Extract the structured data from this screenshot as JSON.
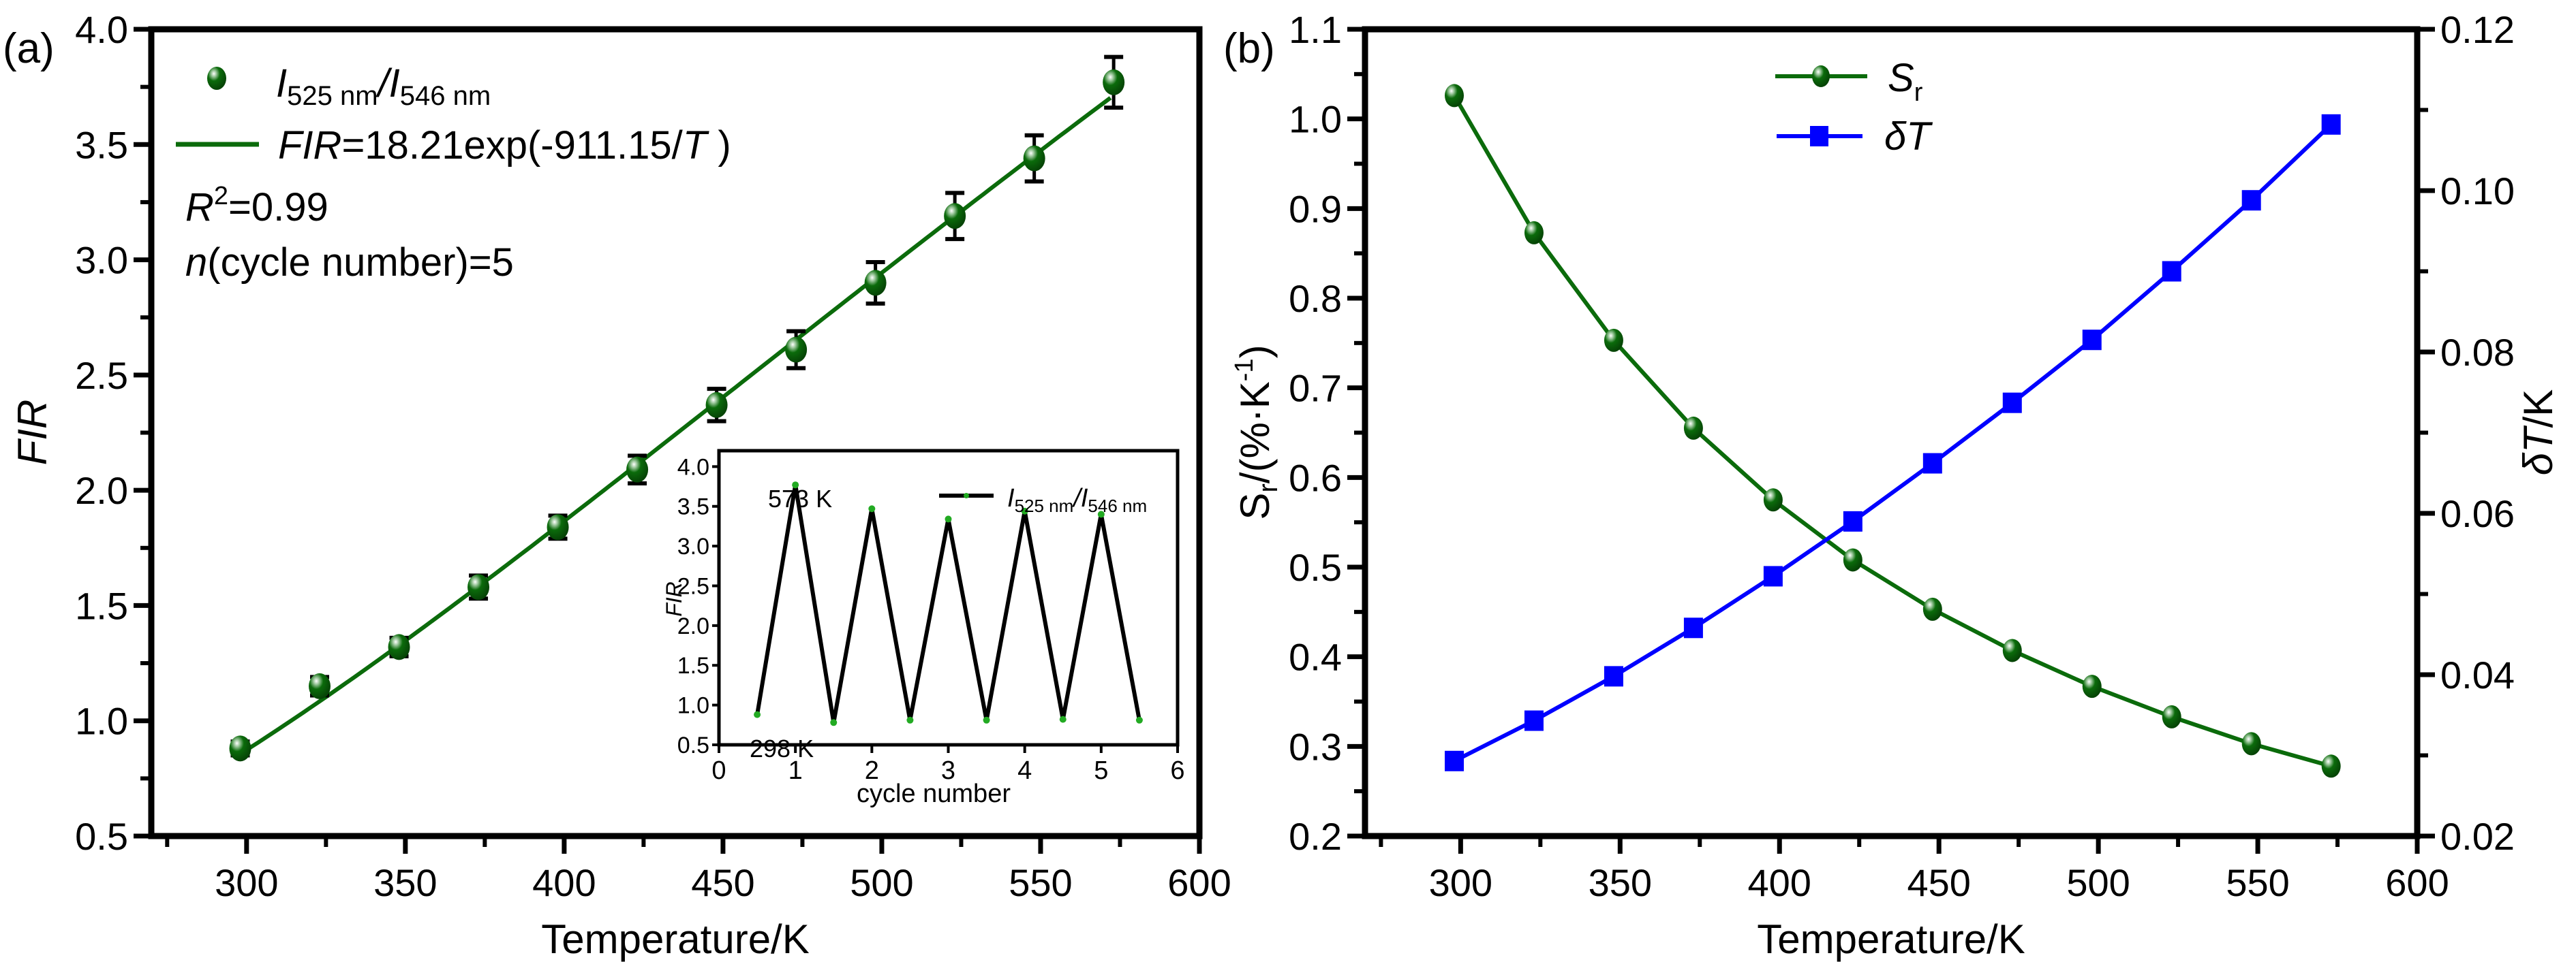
{
  "chart_data": [
    {
      "panel_label": "(a)",
      "type": "scatter",
      "title": "",
      "xlabel": "Temperature/K",
      "ylabel": "FIR",
      "xlim": [
        270,
        600
      ],
      "ylim": [
        0.5,
        4.0
      ],
      "xticks": [
        300,
        350,
        400,
        450,
        500,
        550,
        600
      ],
      "xtick_labels": [
        "300",
        "350",
        "400",
        "450",
        "500",
        "550",
        "600"
      ],
      "yticks": [
        0.5,
        1.0,
        1.5,
        2.0,
        2.5,
        3.0,
        3.5,
        4.0
      ],
      "ytick_labels": [
        "0.5",
        "1.0",
        "1.5",
        "2.0",
        "2.5",
        "3.0",
        "3.5",
        "4.0"
      ],
      "grid": false,
      "legend_position": "top-left",
      "series": [
        {
          "name": "I525 nm/I546 nm",
          "kind": "scatter-errorbar",
          "color": "#0b6b0b",
          "x": [
            298,
            323,
            348,
            373,
            398,
            423,
            448,
            473,
            498,
            523,
            548,
            573
          ],
          "y": [
            0.88,
            1.15,
            1.32,
            1.58,
            1.84,
            2.09,
            2.37,
            2.61,
            2.9,
            3.19,
            3.44,
            3.77
          ],
          "yerr": [
            0.03,
            0.04,
            0.04,
            0.05,
            0.05,
            0.06,
            0.07,
            0.08,
            0.09,
            0.1,
            0.1,
            0.11
          ]
        },
        {
          "name": "FIR=18.21exp(-911.15/T)",
          "kind": "fit-line",
          "color": "#0b6b0b",
          "A": 18.21,
          "B": 911.15,
          "x_range": [
            298,
            573
          ]
        }
      ],
      "legend": {
        "scatter_label_main": "I",
        "scatter_sub1": "525 nm",
        "scatter_sep": "/",
        "scatter_label_main2": "I",
        "scatter_sub2": "546 nm",
        "fit_label_italic": "FIR",
        "fit_label_rest": "=18.21exp(-911.15/",
        "fit_label_T": "T",
        "fit_label_close": " )"
      },
      "annotations": {
        "r2_var": "R",
        "r2_sup": "2",
        "r2_rest": "=0.99",
        "cycle_var": "n",
        "cycle_rest": "(cycle number)=5"
      },
      "inset": {
        "type": "line",
        "xlabel": "cycle number",
        "ylabel": "FIR",
        "xlim": [
          0,
          6
        ],
        "ylim": [
          0.5,
          4.2
        ],
        "xticks": [
          0,
          1,
          2,
          3,
          4,
          5,
          6
        ],
        "xtick_labels": [
          "0",
          "1",
          "2",
          "3",
          "4",
          "5",
          "6"
        ],
        "yticks": [
          0.5,
          1.0,
          1.5,
          2.0,
          2.5,
          3.0,
          3.5,
          4.0
        ],
        "ytick_labels": [
          "0.5",
          "1.0",
          "1.5",
          "2.0",
          "2.5",
          "3.0",
          "3.5",
          "4.0"
        ],
        "series": [
          {
            "name": "I525 nm/I546 nm",
            "line_color": "#000000",
            "marker_color": "#22aa22",
            "x": [
              0.5,
              1.0,
              1.5,
              2.0,
              2.5,
              3.0,
              3.5,
              4.0,
              4.5,
              5.0,
              5.5
            ],
            "y": [
              0.88,
              3.77,
              0.78,
              3.47,
              0.81,
              3.34,
              0.81,
              3.44,
              0.82,
              3.4,
              0.81
            ]
          }
        ],
        "annotations": {
          "high": "573 K",
          "low": "298 K"
        },
        "legend": {
          "main": "I",
          "sub1": "525 nm",
          "sep": "/",
          "main2": "I",
          "sub2": "546 nm"
        }
      }
    },
    {
      "panel_label": "(b)",
      "type": "line",
      "title": "",
      "xlabel": "Temperature/K",
      "ylabel_left_main": "S",
      "ylabel_left_sub": "r",
      "ylabel_left_rest": "/(%·K",
      "ylabel_left_sup": "-1",
      "ylabel_left_close": ")",
      "ylabel_right_var": "δT",
      "ylabel_right_rest": "/K",
      "xlim": [
        270,
        600
      ],
      "ylim_left": [
        0.2,
        1.1
      ],
      "ylim_right": [
        0.02,
        0.12
      ],
      "xticks": [
        300,
        350,
        400,
        450,
        500,
        550,
        600
      ],
      "xtick_labels": [
        "300",
        "350",
        "400",
        "450",
        "500",
        "550",
        "600"
      ],
      "yticks_left": [
        0.2,
        0.3,
        0.4,
        0.5,
        0.6,
        0.7,
        0.8,
        0.9,
        1.0,
        1.1
      ],
      "ytick_labels_left": [
        "0.2",
        "0.3",
        "0.4",
        "0.5",
        "0.6",
        "0.7",
        "0.8",
        "0.9",
        "1.0",
        "1.1"
      ],
      "yticks_right": [
        0.02,
        0.04,
        0.06,
        0.08,
        0.1,
        0.12
      ],
      "ytick_labels_right": [
        "0.02",
        "0.04",
        "0.06",
        "0.08",
        "0.10",
        "0.12"
      ],
      "grid": false,
      "legend_position": "top-center",
      "series": [
        {
          "name": "Sr",
          "legend_main": "S",
          "legend_sub": "r",
          "axis": "left",
          "marker": "circle",
          "color": "#0b6b0b",
          "x": [
            298,
            323,
            348,
            373,
            398,
            423,
            448,
            473,
            498,
            523,
            548,
            573
          ],
          "y": [
            1.026,
            0.873,
            0.753,
            0.655,
            0.575,
            0.508,
            0.453,
            0.407,
            0.367,
            0.333,
            0.303,
            0.278
          ]
        },
        {
          "name": "δT",
          "legend_main": "δT",
          "legend_sub": "",
          "axis": "right",
          "marker": "square",
          "color": "#0000ff",
          "x": [
            298,
            323,
            348,
            373,
            398,
            423,
            448,
            473,
            498,
            523,
            548,
            573
          ],
          "y": [
            0.0293,
            0.0343,
            0.0398,
            0.0458,
            0.0522,
            0.059,
            0.0662,
            0.0737,
            0.0815,
            0.09,
            0.0988,
            0.1082
          ]
        }
      ]
    }
  ]
}
